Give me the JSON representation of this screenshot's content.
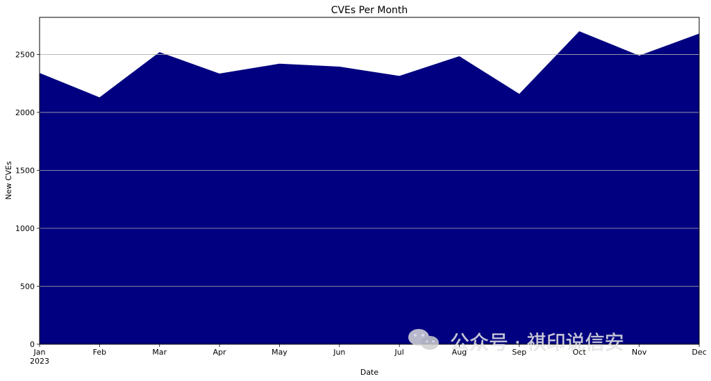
{
  "chart_data": {
    "type": "area",
    "title": "CVEs Per Month",
    "xlabel": "Date",
    "ylabel": "New CVEs",
    "x": [
      "Jan",
      "Feb",
      "Mar",
      "Apr",
      "May",
      "Jun",
      "Jul",
      "Aug",
      "Sep",
      "Oct",
      "Nov",
      "Dec"
    ],
    "year_label": "2023",
    "series": [
      {
        "values": [
          2340,
          2130,
          2520,
          2335,
          2420,
          2395,
          2315,
          2485,
          2160,
          2700,
          2490,
          2680
        ],
        "color": "#000080"
      }
    ],
    "ylim": [
      0,
      2820
    ],
    "yticks": [
      0,
      500,
      1000,
      1500,
      2000,
      2500
    ],
    "grid": "horizontal"
  },
  "watermark": {
    "text": "公众号 · 祺印说信安",
    "icon": "wechat-icon"
  }
}
